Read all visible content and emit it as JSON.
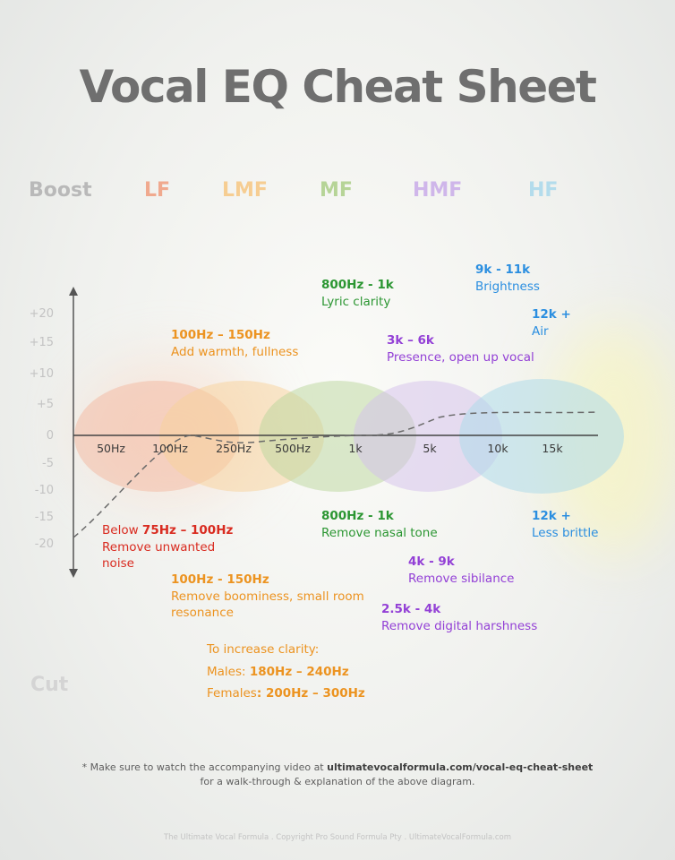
{
  "title": "Vocal EQ Cheat Sheet",
  "boost_label": "Boost",
  "cut_label": "Cut",
  "bands": [
    {
      "name": "LF",
      "color": "#f0a98e"
    },
    {
      "name": "LMF",
      "color": "#f6cd92"
    },
    {
      "name": "MF",
      "color": "#b6d497"
    },
    {
      "name": "HMF",
      "color": "#cfb6ea"
    },
    {
      "name": "HF",
      "color": "#b3dcec"
    }
  ],
  "y_labels": [
    "+20",
    "+15",
    "+10",
    "+5",
    "0",
    "-5",
    "-10",
    "-15",
    "-20"
  ],
  "freq_labels": [
    "50Hz",
    "100Hz",
    "250Hz",
    "500Hz",
    "1k",
    "5k",
    "10k",
    "15k"
  ],
  "boost_annotations": {
    "lyric": {
      "freq": "800Hz - 1k",
      "desc": "Lyric clarity"
    },
    "brightness": {
      "freq": "9k - 11k",
      "desc": "Brightness"
    },
    "air": {
      "freq": "12k +",
      "desc": "Air"
    },
    "warmth": {
      "freq": "100Hz – 150Hz",
      "desc": "Add warmth, fullness"
    },
    "presence": {
      "freq": "3k – 6k",
      "desc": "Presence, open up vocal"
    }
  },
  "cut_annotations": {
    "noise": {
      "prefix": "Below ",
      "freq": "75Hz – 100Hz",
      "desc1": "Remove unwanted",
      "desc2": "noise"
    },
    "nasal": {
      "freq": "800Hz - 1k",
      "desc": "Remove nasal tone"
    },
    "brittle": {
      "freq": "12k +",
      "desc": "Less brittle"
    },
    "sibilance": {
      "freq": "4k - 9k",
      "desc": "Remove sibilance"
    },
    "boominess": {
      "freq": "100Hz - 150Hz",
      "desc1": "Remove boominess, small room",
      "desc2": "resonance"
    },
    "harshness": {
      "freq": "2.5k - 4k",
      "desc": "Remove digital harshness"
    }
  },
  "clarity": {
    "heading": "To increase clarity:",
    "males_label": "Males: ",
    "males_value": "180Hz – 240Hz",
    "females_label": "Females",
    "females_value": ": 200Hz – 300Hz"
  },
  "footnote": {
    "line1_prefix": "* Make sure to watch the accompanying video at ",
    "url": "ultimatevocalformula.com/vocal-eq-cheat-sheet",
    "line2": "for a walk-through & explanation of the above diagram."
  },
  "credits": "The Ultimate Vocal Formula .  Copyright Pro Sound Formula Pty . UltimateVocalFormula.com"
}
